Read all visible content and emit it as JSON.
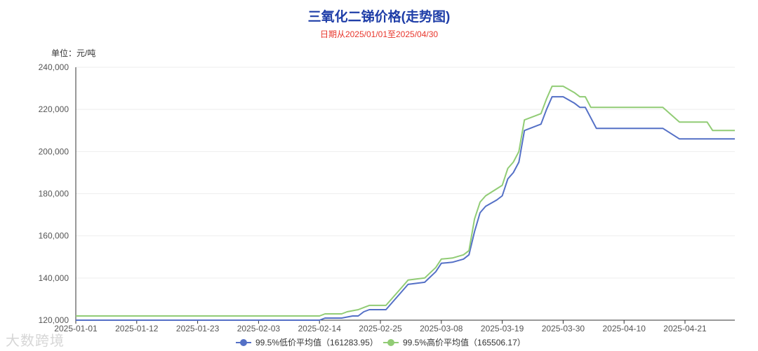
{
  "chart_data": {
    "type": "line",
    "title": "三氧化二锑价格(走势图)",
    "subtitle": "日期从2025/01/01至2025/04/30",
    "unit_label": "单位：元/吨",
    "ylim": [
      120000,
      240000
    ],
    "yticks": [
      "120,000",
      "140,000",
      "160,000",
      "180,000",
      "200,000",
      "220,000",
      "240,000"
    ],
    "xlim": [
      "2025-01-01",
      "2025-04-30"
    ],
    "xticks": [
      "2025-01-01",
      "2025-01-12",
      "2025-01-23",
      "2025-02-03",
      "2025-02-14",
      "2025-02-25",
      "2025-03-08",
      "2025-03-19",
      "2025-03-30",
      "2025-04-10",
      "2025-04-21"
    ],
    "grid": true,
    "legend_position": "bottom",
    "series": [
      {
        "name": "99.5%低价平均值（161283.95）",
        "color": "#5470c6",
        "points": [
          [
            "2025-01-01",
            120000
          ],
          [
            "2025-02-14",
            120000
          ],
          [
            "2025-02-15",
            121000
          ],
          [
            "2025-02-18",
            121000
          ],
          [
            "2025-02-20",
            122000
          ],
          [
            "2025-02-21",
            122000
          ],
          [
            "2025-02-22",
            124000
          ],
          [
            "2025-02-23",
            125000
          ],
          [
            "2025-02-26",
            125000
          ],
          [
            "2025-02-28",
            131000
          ],
          [
            "2025-03-01",
            134000
          ],
          [
            "2025-03-02",
            137000
          ],
          [
            "2025-03-05",
            138000
          ],
          [
            "2025-03-07",
            143000
          ],
          [
            "2025-03-08",
            147000
          ],
          [
            "2025-03-10",
            147500
          ],
          [
            "2025-03-12",
            149000
          ],
          [
            "2025-03-13",
            151000
          ],
          [
            "2025-03-14",
            162000
          ],
          [
            "2025-03-15",
            171000
          ],
          [
            "2025-03-16",
            174000
          ],
          [
            "2025-03-18",
            177000
          ],
          [
            "2025-03-19",
            179000
          ],
          [
            "2025-03-20",
            187000
          ],
          [
            "2025-03-21",
            190000
          ],
          [
            "2025-03-22",
            195000
          ],
          [
            "2025-03-23",
            210000
          ],
          [
            "2025-03-26",
            213000
          ],
          [
            "2025-03-27",
            220000
          ],
          [
            "2025-03-28",
            226000
          ],
          [
            "2025-03-30",
            226000
          ],
          [
            "2025-04-01",
            223000
          ],
          [
            "2025-04-02",
            221000
          ],
          [
            "2025-04-03",
            221000
          ],
          [
            "2025-04-05",
            211000
          ],
          [
            "2025-04-17",
            211000
          ],
          [
            "2025-04-20",
            206000
          ],
          [
            "2025-04-30",
            206000
          ]
        ]
      },
      {
        "name": "99.5%高价平均值（165506.17）",
        "color": "#91cc75",
        "points": [
          [
            "2025-01-01",
            122000
          ],
          [
            "2025-02-14",
            122000
          ],
          [
            "2025-02-15",
            123000
          ],
          [
            "2025-02-18",
            123000
          ],
          [
            "2025-02-19",
            124000
          ],
          [
            "2025-02-21",
            125000
          ],
          [
            "2025-02-22",
            126000
          ],
          [
            "2025-02-23",
            127000
          ],
          [
            "2025-02-26",
            127000
          ],
          [
            "2025-02-28",
            133000
          ],
          [
            "2025-03-01",
            136000
          ],
          [
            "2025-03-02",
            139000
          ],
          [
            "2025-03-05",
            140000
          ],
          [
            "2025-03-07",
            145000
          ],
          [
            "2025-03-08",
            149000
          ],
          [
            "2025-03-10",
            149500
          ],
          [
            "2025-03-12",
            151000
          ],
          [
            "2025-03-13",
            153000
          ],
          [
            "2025-03-14",
            168000
          ],
          [
            "2025-03-15",
            176000
          ],
          [
            "2025-03-16",
            179000
          ],
          [
            "2025-03-19",
            184000
          ],
          [
            "2025-03-20",
            192000
          ],
          [
            "2025-03-21",
            195000
          ],
          [
            "2025-03-22",
            200000
          ],
          [
            "2025-03-23",
            215000
          ],
          [
            "2025-03-26",
            218000
          ],
          [
            "2025-03-27",
            225000
          ],
          [
            "2025-03-28",
            231000
          ],
          [
            "2025-03-30",
            231000
          ],
          [
            "2025-04-01",
            228000
          ],
          [
            "2025-04-02",
            226000
          ],
          [
            "2025-04-03",
            226000
          ],
          [
            "2025-04-04",
            221000
          ],
          [
            "2025-04-17",
            221000
          ],
          [
            "2025-04-20",
            214000
          ],
          [
            "2025-04-25",
            214000
          ],
          [
            "2025-04-26",
            210000
          ],
          [
            "2025-04-30",
            210000
          ]
        ]
      }
    ]
  },
  "watermark": "大数跨境"
}
